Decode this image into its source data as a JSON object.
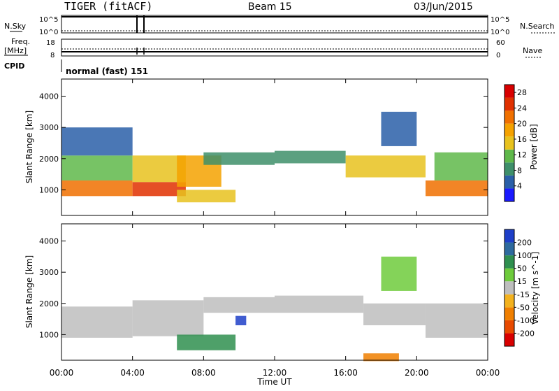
{
  "header": {
    "title": "TIGER (fitACF)",
    "beam": "Beam 15",
    "date": "03/Jun/2015"
  },
  "side_labels": {
    "nsky": "N.Sky",
    "nsearch": "N.Search",
    "freq": "Freq.",
    "mhz": "[MHz]",
    "cpid": "CPID",
    "nave": "Nave"
  },
  "top_ticks": {
    "sky_top": "10^5",
    "sky_bottom": "10^0",
    "search_top": "10^5",
    "search_bottom": "10^0",
    "freq_top": "18",
    "freq_bottom": "8",
    "nave_top": "60",
    "nave_bottom": "0"
  },
  "cpid_text": "normal (fast) 151",
  "chart_data": [
    {
      "type": "heatmap",
      "title": "",
      "xlabel": "Time UT",
      "ylabel": "Slant Range [km]",
      "x_ticks": [
        "00:00",
        "04:00",
        "08:00",
        "12:00",
        "16:00",
        "20:00",
        "00:00"
      ],
      "xlim_hours": [
        0,
        24
      ],
      "y_ticks": [
        "1000",
        "2000",
        "3000",
        "4000"
      ],
      "ylim_km": [
        180,
        4550
      ],
      "colorbar": {
        "label": "Power [dB]",
        "ticks": [
          "4",
          "8",
          "12",
          "16",
          "20",
          "24",
          "28"
        ],
        "range": [
          0,
          30
        ],
        "colors": [
          "#1a1aff",
          "#2a5fa8",
          "#3e8f6a",
          "#5fb84a",
          "#e8c21e",
          "#f5a200",
          "#f07000",
          "#e03000",
          "#d80000"
        ]
      },
      "bands": [
        {
          "t0": 0.0,
          "t1": 4.0,
          "r0": 800,
          "r1": 1300,
          "value": 22
        },
        {
          "t0": 0.0,
          "t1": 4.0,
          "r0": 1300,
          "r1": 2100,
          "value": 12
        },
        {
          "t0": 0.0,
          "t1": 4.0,
          "r0": 2100,
          "r1": 3000,
          "value": 6
        },
        {
          "t0": 4.0,
          "t1": 7.0,
          "r0": 800,
          "r1": 1250,
          "value": 24
        },
        {
          "t0": 4.0,
          "t1": 7.0,
          "r0": 1250,
          "r1": 2100,
          "value": 14
        },
        {
          "t0": 6.5,
          "t1": 9.0,
          "r0": 1100,
          "r1": 2100,
          "value": 18
        },
        {
          "t0": 8.0,
          "t1": 12.0,
          "r0": 1800,
          "r1": 2200,
          "value": 8
        },
        {
          "t0": 6.5,
          "t1": 9.8,
          "r0": 600,
          "r1": 1000,
          "value": 14
        },
        {
          "t0": 12.0,
          "t1": 16.0,
          "r0": 1850,
          "r1": 2250,
          "value": 8
        },
        {
          "t0": 16.0,
          "t1": 20.5,
          "r0": 1400,
          "r1": 2100,
          "value": 16
        },
        {
          "t0": 18.0,
          "t1": 20.0,
          "r0": 2400,
          "r1": 3500,
          "value": 6
        },
        {
          "t0": 20.5,
          "t1": 24.0,
          "r0": 800,
          "r1": 1300,
          "value": 22
        },
        {
          "t0": 21.0,
          "t1": 24.0,
          "r0": 1300,
          "r1": 2200,
          "value": 12
        }
      ]
    },
    {
      "type": "heatmap",
      "title": "",
      "xlabel": "Time UT",
      "ylabel": "Slant Range [km]",
      "x_ticks": [
        "00:00",
        "04:00",
        "08:00",
        "12:00",
        "16:00",
        "20:00",
        "00:00"
      ],
      "xlim_hours": [
        0,
        24
      ],
      "y_ticks": [
        "1000",
        "2000",
        "3000",
        "4000"
      ],
      "ylim_km": [
        180,
        4550
      ],
      "colorbar": {
        "label": "Velocity [m s^-1]",
        "ticks": [
          "200",
          "100",
          "50",
          "15",
          "-15",
          "-50",
          "-100",
          "-200"
        ],
        "colors": [
          "#1e3fc8",
          "#2e6a9e",
          "#2f8f4f",
          "#6ecb3c",
          "#bebebe",
          "#f3b21e",
          "#f07f00",
          "#e84a00",
          "#d80000"
        ]
      },
      "bands": [
        {
          "t0": 0.0,
          "t1": 4.0,
          "r0": 900,
          "r1": 1900,
          "value": 0
        },
        {
          "t0": 4.0,
          "t1": 8.0,
          "r0": 950,
          "r1": 2100,
          "value": 0
        },
        {
          "t0": 8.0,
          "t1": 12.0,
          "r0": 1700,
          "r1": 2200,
          "value": 0
        },
        {
          "t0": 12.0,
          "t1": 17.0,
          "r0": 1700,
          "r1": 2250,
          "value": 0
        },
        {
          "t0": 17.0,
          "t1": 20.5,
          "r0": 1300,
          "r1": 2000,
          "value": 0
        },
        {
          "t0": 20.5,
          "t1": 24.0,
          "r0": 900,
          "r1": 2000,
          "value": 0
        },
        {
          "t0": 6.5,
          "t1": 9.8,
          "r0": 500,
          "r1": 1000,
          "value": 40
        },
        {
          "t0": 9.8,
          "t1": 10.4,
          "r0": 1300,
          "r1": 1600,
          "value": 180
        },
        {
          "t0": 18.0,
          "t1": 20.0,
          "r0": 2400,
          "r1": 3500,
          "value": 30
        },
        {
          "t0": 17.0,
          "t1": 19.0,
          "r0": 150,
          "r1": 400,
          "value": -60
        }
      ]
    }
  ]
}
